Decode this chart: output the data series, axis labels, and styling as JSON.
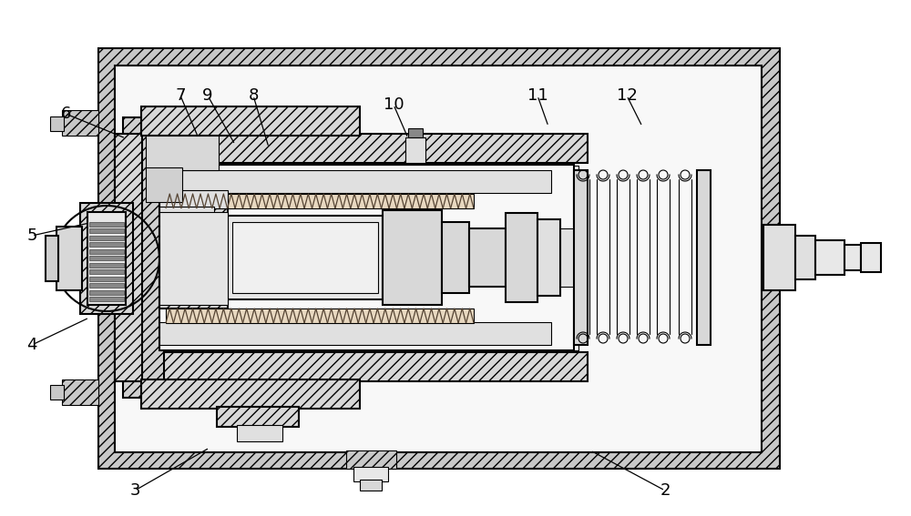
{
  "bg_color": "#ffffff",
  "line_color": "#000000",
  "hatch_face": "#c8c8c8",
  "inner_face": "#f0f0f0",
  "part_face": "#e0e0e0",
  "lw_main": 1.5,
  "lw_thin": 0.8,
  "annotations": [
    [
      "2",
      730,
      28,
      648,
      72
    ],
    [
      "3",
      148,
      28,
      230,
      75
    ],
    [
      "4",
      35,
      188,
      98,
      218
    ],
    [
      "5",
      35,
      308,
      98,
      322
    ],
    [
      "6",
      72,
      442,
      138,
      415
    ],
    [
      "7",
      198,
      462,
      218,
      415
    ],
    [
      "9",
      228,
      462,
      258,
      408
    ],
    [
      "8",
      278,
      462,
      295,
      405
    ],
    [
      "10",
      432,
      452,
      448,
      415
    ],
    [
      "11",
      590,
      462,
      602,
      428
    ],
    [
      "12",
      688,
      462,
      705,
      428
    ]
  ]
}
